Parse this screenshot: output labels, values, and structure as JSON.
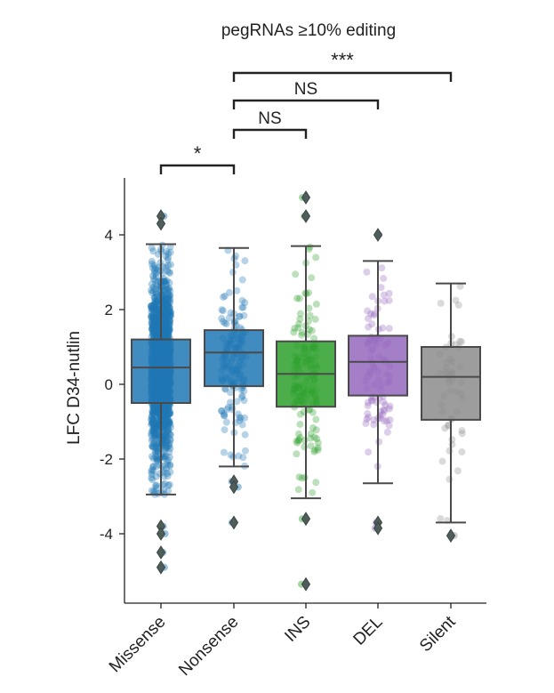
{
  "chart_data": {
    "type": "box",
    "title": "pegRNAs ≥10% editing",
    "ylabel": "LFC D34-nutlin",
    "xlabel": "",
    "ylim": [
      -5.9,
      5.5
    ],
    "yticks": [
      4,
      2,
      0,
      -2,
      -4
    ],
    "ytick_labels": [
      "4",
      "2",
      "0",
      "-2",
      "-4"
    ],
    "categories": [
      "Missense",
      "Nonsense",
      "INS",
      "DEL",
      "Silent"
    ],
    "boxes": [
      {
        "category": "Missense",
        "color": "#1f77b4",
        "q1": -0.5,
        "median": 0.45,
        "q3": 1.2,
        "whisker_low": -2.95,
        "whisker_high": 3.75,
        "outliers": [
          4.5,
          4.3,
          -3.8,
          -4.0,
          -4.5,
          -4.9
        ],
        "n_points": 1500
      },
      {
        "category": "Nonsense",
        "color": "#1f77b4",
        "q1": -0.05,
        "median": 0.85,
        "q3": 1.45,
        "whisker_low": -2.2,
        "whisker_high": 3.65,
        "outliers": [
          -2.6,
          -2.75,
          -3.7
        ],
        "n_points": 150
      },
      {
        "category": "INS",
        "color": "#2ca02c",
        "q1": -0.6,
        "median": 0.28,
        "q3": 1.15,
        "whisker_low": -3.05,
        "whisker_high": 3.7,
        "outliers": [
          5.0,
          4.5,
          -3.6,
          -5.35
        ],
        "n_points": 140
      },
      {
        "category": "DEL",
        "color": "#9467bd",
        "q1": -0.3,
        "median": 0.6,
        "q3": 1.3,
        "whisker_low": -2.65,
        "whisker_high": 3.3,
        "outliers": [
          4.0,
          -3.7,
          -3.85
        ],
        "n_points": 90
      },
      {
        "category": "Silent",
        "color": "#8c8c8c",
        "q1": -0.95,
        "median": 0.2,
        "q3": 1.0,
        "whisker_low": -3.7,
        "whisker_high": 2.7,
        "outliers": [
          -4.05
        ],
        "n_points": 50
      }
    ],
    "significance": [
      {
        "from": "Missense",
        "to": "Nonsense",
        "label": "*"
      },
      {
        "from": "Nonsense",
        "to": "INS",
        "label": "NS"
      },
      {
        "from": "Nonsense",
        "to": "DEL",
        "label": "NS"
      },
      {
        "from": "Nonsense",
        "to": "Silent",
        "label": "***"
      }
    ],
    "grid": false,
    "legend": "none"
  }
}
